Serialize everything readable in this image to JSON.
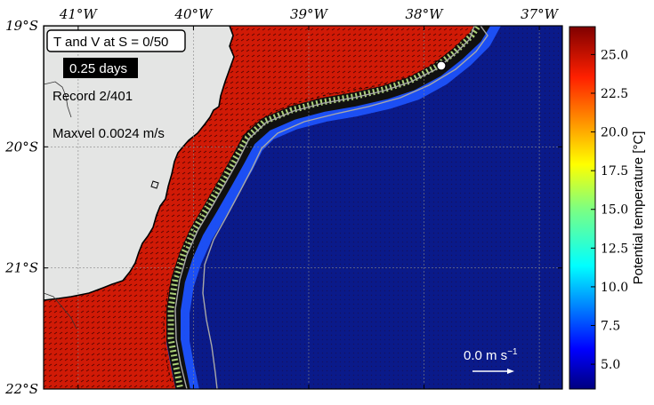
{
  "map": {
    "top_labels": [
      "41°W",
      "40°W",
      "39°W",
      "38°W",
      "37°W"
    ],
    "left_labels": [
      "19°S",
      "20°S",
      "21°S",
      "22°S"
    ],
    "lon_range": [
      -41.3,
      -36.8
    ],
    "lat_range": [
      -22.0,
      -19.0
    ],
    "lon_ticks": [
      -41,
      -40,
      -39,
      -38,
      -37
    ],
    "lat_ticks": [
      -19,
      -20,
      -21,
      -22
    ],
    "marker": {
      "lon": -37.85,
      "lat": -19.33
    }
  },
  "overlay": {
    "title": "T and V at S = 0/50",
    "time": "0.25 days",
    "record": "Record 2/401",
    "maxvel": "Maxvel 0.0024 m/s",
    "scale_label": "0.0 m s",
    "scale_exp": "−1"
  },
  "colorbar": {
    "label": "Potential temperature [°C]",
    "min": 3.4,
    "max": 26.8,
    "ticks": [
      "25.0",
      "22.5",
      "20.0",
      "17.5",
      "15.0",
      "12.5",
      "10.0",
      "7.5",
      "5.0"
    ],
    "tick_values": [
      25.0,
      22.5,
      20.0,
      17.5,
      15.0,
      12.5,
      10.0,
      7.5,
      5.0
    ]
  },
  "colors": {
    "land": "#e4e5e4",
    "warm": "#d01a06",
    "deep": "#0a1a8a",
    "front_dark": "#101010",
    "isobath": "#a8a8a8",
    "vector_warm": "#2a0000",
    "vector_front": "#c8f28a"
  }
}
